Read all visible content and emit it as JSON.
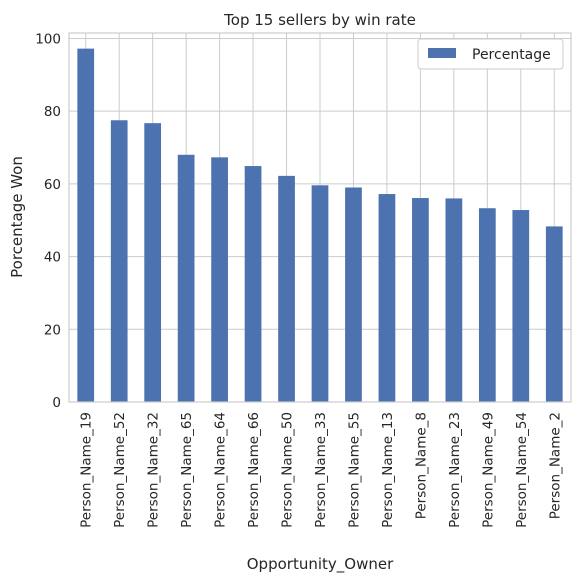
{
  "chart_data": {
    "type": "bar",
    "title": "Top 15 sellers by win rate",
    "xlabel": "Opportunity_Owner",
    "ylabel": "Porcentage Won",
    "categories": [
      "Person_Name_19",
      "Person_Name_52",
      "Person_Name_32",
      "Person_Name_65",
      "Person_Name_64",
      "Person_Name_66",
      "Person_Name_50",
      "Person_Name_33",
      "Person_Name_55",
      "Person_Name_13",
      "Person_Name_8",
      "Person_Name_23",
      "Person_Name_49",
      "Person_Name_54",
      "Person_Name_2"
    ],
    "series": [
      {
        "name": "Percentage",
        "values": [
          97.2,
          77.5,
          76.7,
          68.0,
          67.3,
          64.9,
          62.2,
          59.6,
          59.0,
          57.2,
          56.1,
          56.0,
          53.3,
          52.8,
          48.3
        ]
      }
    ],
    "ylim": [
      0,
      101.5
    ],
    "yticks": [
      0,
      20,
      40,
      60,
      80,
      100
    ],
    "grid": true,
    "legend_position": "top-right",
    "bar_color": "#4c72b0"
  }
}
